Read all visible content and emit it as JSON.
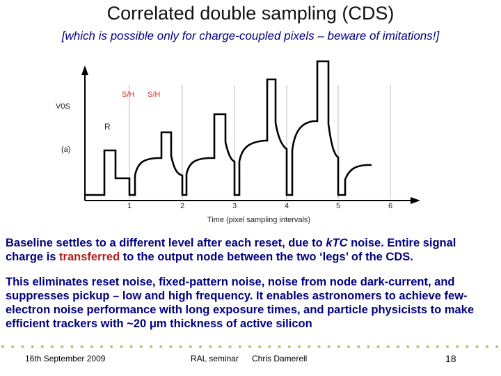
{
  "slide": {
    "title": "Correlated double sampling (CDS)",
    "subtitle": "[which is possible only for charge-coupled pixels – beware of imitations!]"
  },
  "figure": {
    "y_axis_label": "V0S",
    "reset_label": "R",
    "panel_label": "(a)",
    "sh_labels": [
      "S/H",
      "S/H"
    ],
    "x_ticks": [
      "1",
      "2",
      "3",
      "4",
      "5",
      "6"
    ],
    "x_axis_label": "Time (pixel sampling intervals)",
    "colors": {
      "sh": "#d9342b",
      "trace": "#000000",
      "grid": "#bbbbbb"
    }
  },
  "body": {
    "p1_a": "Baseline settles to a different level after each reset, due to ",
    "p1_ktc": "kTC",
    "p1_b": "  noise.  Entire signal charge is ",
    "p1_transferred": "transferred",
    "p1_c": " to the output node between the two ‘legs’ of the CDS.",
    "p2_a": "This eliminates reset noise, fixed-pattern noise, noise from node dark-current, and suppresses pickup – low and high frequency.  It enables astronomers to achieve few-electron noise performance with long exposure times, and particle physicists to make efficient trackers with ~20 ",
    "p2_mu": "μ",
    "p2_b": "m thickness of active silicon"
  },
  "footer": {
    "date": "16th September 2009",
    "event": "RAL seminar",
    "author": "Chris Damerell",
    "page": "18"
  }
}
